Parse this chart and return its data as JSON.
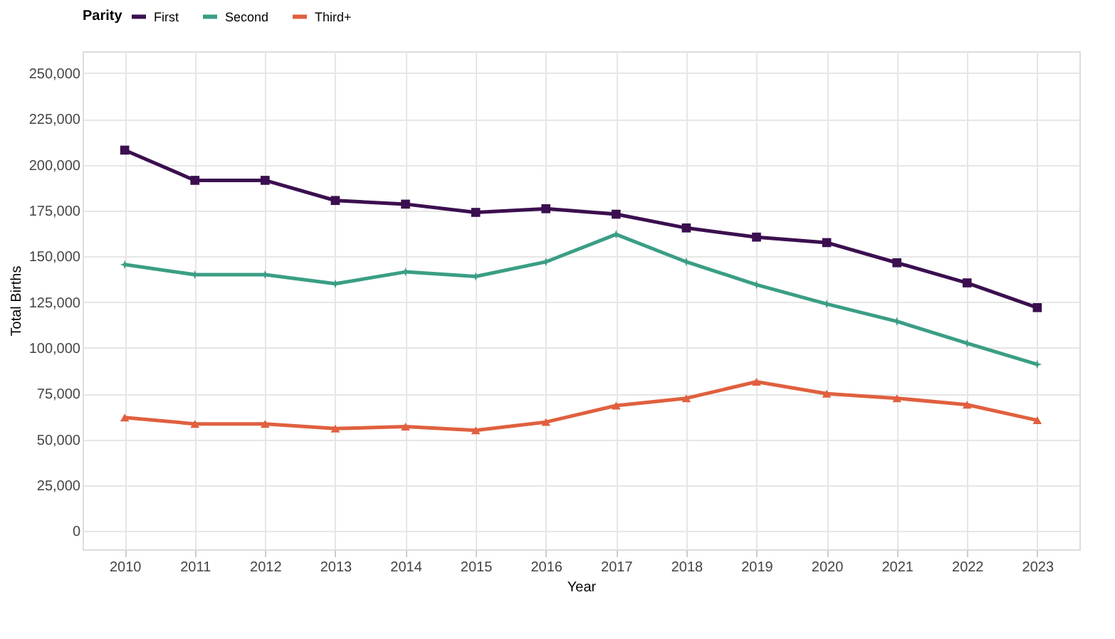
{
  "chart_data": {
    "type": "line",
    "xlabel": "Year",
    "ylabel": "Total Births",
    "legend_title": "Parity",
    "legend": "top",
    "grid": true,
    "categories": [
      "2010",
      "2011",
      "2012",
      "2013",
      "2014",
      "2015",
      "2016",
      "2017",
      "2018",
      "2019",
      "2020",
      "2021",
      "2022",
      "2023"
    ],
    "ylim": [
      -10000,
      262000
    ],
    "yticks": [
      {
        "value": 0,
        "label": "0"
      },
      {
        "value": 25000,
        "label": "25,000"
      },
      {
        "value": 50000,
        "label": "50,000"
      },
      {
        "value": 75000,
        "label": "75,000"
      },
      {
        "value": 100000,
        "label": "100,000"
      },
      {
        "value": 125000,
        "label": "125,000"
      },
      {
        "value": 150000,
        "label": "150,000"
      },
      {
        "value": 175000,
        "label": "175,000"
      },
      {
        "value": 200000,
        "label": "200,000"
      },
      {
        "value": 225000,
        "label": "225,000"
      },
      {
        "value": 250000,
        "label": "250,000"
      }
    ],
    "series": [
      {
        "name": "First",
        "color": "#3b0f4f",
        "marker": "square",
        "values": [
          208000,
          191500,
          191500,
          180500,
          178500,
          174000,
          176000,
          173000,
          165500,
          160500,
          157500,
          146500,
          135500,
          122000
        ]
      },
      {
        "name": "Second",
        "color": "#3a9e85",
        "marker": "star",
        "values": [
          145500,
          140000,
          140000,
          135000,
          141500,
          139000,
          147000,
          162000,
          147000,
          134500,
          124000,
          114500,
          102500,
          91000
        ]
      },
      {
        "name": "Third+",
        "color": "#e0603f",
        "marker": "triangle",
        "values": [
          62000,
          58500,
          58500,
          56000,
          57000,
          55000,
          59500,
          68500,
          72500,
          81500,
          75000,
          72500,
          69000,
          60500
        ]
      }
    ]
  }
}
